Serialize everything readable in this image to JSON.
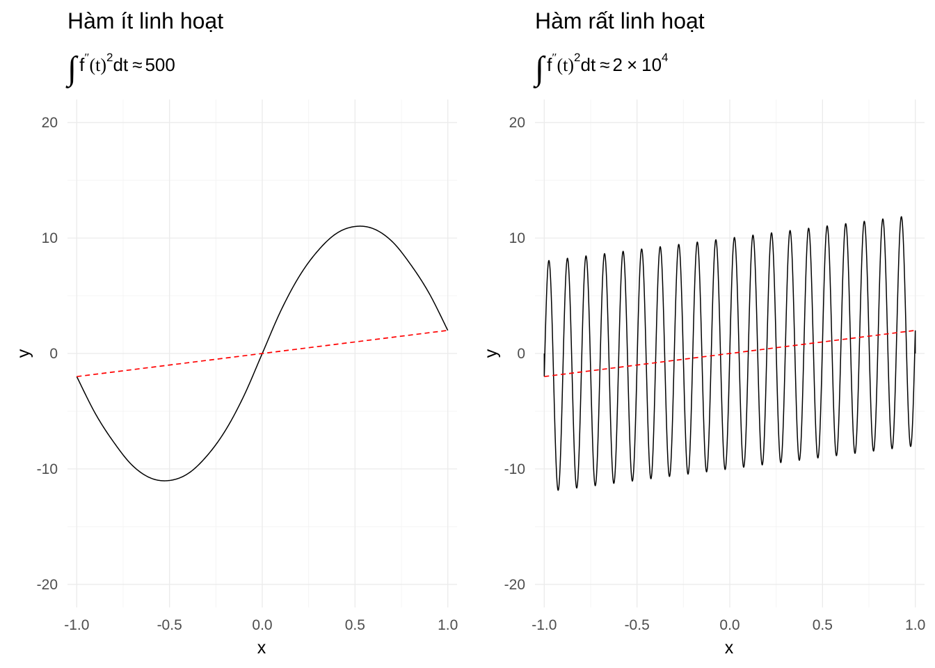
{
  "chart_data": [
    {
      "type": "line",
      "title": "Hàm ít linh hoạt",
      "subtitle": {
        "integral": "∫",
        "f": "f",
        "prime": "″",
        "var": "(t)",
        "power": "2",
        "dt": "dt",
        "approx": "≈",
        "value": "500",
        "times": "",
        "exponent": ""
      },
      "xlabel": "x",
      "ylabel": "y",
      "xlim": [
        -1.05,
        1.05
      ],
      "ylim": [
        -22,
        22
      ],
      "x_ticks": [
        -1.0,
        -0.5,
        0.0,
        0.5,
        1.0
      ],
      "x_tick_labels": [
        "-1.0",
        "-0.5",
        "0.0",
        "0.5",
        "1.0"
      ],
      "y_ticks": [
        -20,
        -10,
        0,
        10,
        20
      ],
      "y_tick_labels": [
        "-20",
        "-10",
        "0",
        "10",
        "20"
      ],
      "grid": true,
      "series": [
        {
          "kind": "curve",
          "color": "#000000",
          "style": "solid",
          "x": [
            -1.0,
            -0.9,
            -0.8,
            -0.7,
            -0.6,
            -0.5,
            -0.4,
            -0.3,
            -0.2,
            -0.1,
            0.0,
            0.1,
            0.2,
            0.3,
            0.4,
            0.5,
            0.6,
            0.7,
            0.8,
            0.9,
            1.0
          ],
          "y": [
            -2.0,
            -5.2,
            -7.7,
            -9.7,
            -10.8,
            -11.0,
            -10.4,
            -8.9,
            -6.7,
            -3.7,
            0.0,
            3.7,
            6.7,
            8.9,
            10.4,
            11.0,
            10.8,
            9.7,
            7.7,
            5.2,
            2.0
          ]
        },
        {
          "kind": "reference",
          "color": "#ff0000",
          "style": "dashed",
          "x": [
            -1.0,
            1.0
          ],
          "y": [
            -2.0,
            2.0
          ]
        }
      ]
    },
    {
      "type": "line",
      "title": "Hàm rất linh hoạt",
      "subtitle": {
        "integral": "∫",
        "f": "f",
        "prime": "″",
        "var": "(t)",
        "power": "2",
        "dt": "dt",
        "approx": "≈",
        "value": "2",
        "times": "×",
        "exponent": "10"
      },
      "xlabel": "x",
      "ylabel": "y",
      "xlim": [
        -1.05,
        1.05
      ],
      "ylim": [
        -22,
        22
      ],
      "x_ticks": [
        -1.0,
        -0.5,
        0.0,
        0.5,
        1.0
      ],
      "x_tick_labels": [
        "-1.0",
        "-0.5",
        "0.0",
        "0.5",
        "1.0"
      ],
      "y_ticks": [
        -20,
        -10,
        0,
        10,
        20
      ],
      "y_tick_labels": [
        "-20",
        "-10",
        "0",
        "10",
        "20"
      ],
      "grid": true,
      "series": [
        {
          "kind": "oscillating",
          "color": "#000000",
          "style": "solid",
          "baseline_start": [
            -1.0,
            -2.0
          ],
          "baseline_end": [
            1.0,
            2.0
          ],
          "amplitude": 10,
          "cycles": 20,
          "endpoints": [
            [
              -1.0,
              -2.0
            ],
            [
              1.0,
              2.0
            ]
          ]
        },
        {
          "kind": "reference",
          "color": "#ff0000",
          "style": "dashed",
          "x": [
            -1.0,
            1.0
          ],
          "y": [
            -2.0,
            2.0
          ]
        }
      ]
    }
  ]
}
